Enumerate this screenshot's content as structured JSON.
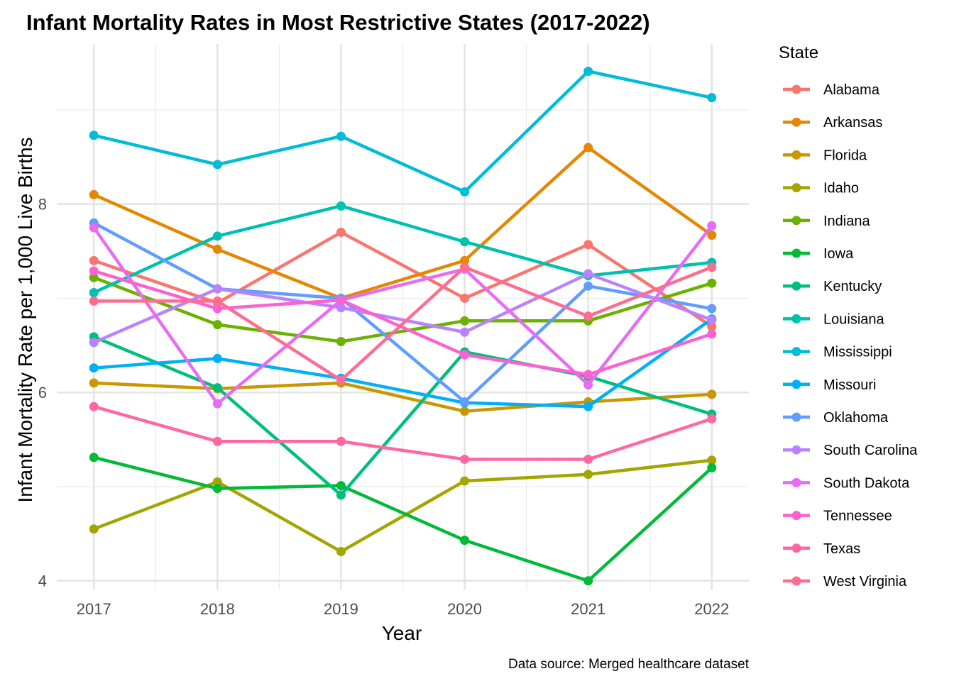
{
  "chart_data": {
    "type": "line",
    "title": "Infant Mortality Rates in Most Restrictive States (2017-2022)",
    "xlabel": "Year",
    "ylabel": "Infant Mortality Rate per 1,000 Live Births",
    "caption": "Data source: Merged healthcare dataset",
    "legend_title": "State",
    "legend_position": "right",
    "grid": true,
    "x": [
      2017,
      2018,
      2019,
      2020,
      2021,
      2022
    ],
    "x_ticks": [
      "2017",
      "2018",
      "2019",
      "2020",
      "2021",
      "2022"
    ],
    "ylim": [
      3.9,
      9.7
    ],
    "y_ticks": [
      4,
      6,
      8
    ],
    "y_tick_labels": [
      "4",
      "6",
      "8"
    ],
    "series": [
      {
        "name": "Alabama",
        "color": "#F8766D",
        "values": [
          7.4,
          6.95,
          7.7,
          7.0,
          7.57,
          6.7
        ]
      },
      {
        "name": "Arkansas",
        "color": "#E58700",
        "values": [
          8.1,
          7.52,
          7.0,
          7.4,
          8.6,
          7.67
        ]
      },
      {
        "name": "Florida",
        "color": "#C99800",
        "values": [
          6.1,
          6.04,
          6.1,
          5.8,
          5.9,
          5.98
        ]
      },
      {
        "name": "Idaho",
        "color": "#A3A500",
        "values": [
          4.55,
          5.05,
          4.31,
          5.06,
          5.13,
          5.28
        ]
      },
      {
        "name": "Indiana",
        "color": "#6BB100",
        "values": [
          7.22,
          6.72,
          6.54,
          6.76,
          6.76,
          7.16
        ]
      },
      {
        "name": "Iowa",
        "color": "#00BA38",
        "values": [
          5.31,
          4.98,
          5.01,
          4.43,
          4.0,
          5.2
        ]
      },
      {
        "name": "Kentucky",
        "color": "#00BF7D",
        "values": [
          6.59,
          6.05,
          4.91,
          6.43,
          6.17,
          5.77
        ]
      },
      {
        "name": "Louisiana",
        "color": "#00C0AF",
        "values": [
          7.06,
          7.66,
          7.98,
          7.6,
          7.24,
          7.38
        ]
      },
      {
        "name": "Mississippi",
        "color": "#00BCD8",
        "values": [
          8.73,
          8.42,
          8.72,
          8.13,
          9.41,
          9.13
        ]
      },
      {
        "name": "Missouri",
        "color": "#00B0F6",
        "values": [
          6.26,
          6.36,
          6.15,
          5.89,
          5.85,
          6.78
        ]
      },
      {
        "name": "Oklahoma",
        "color": "#619CFF",
        "values": [
          7.8,
          7.1,
          7.0,
          5.9,
          7.13,
          6.89
        ]
      },
      {
        "name": "South Carolina",
        "color": "#B983FF",
        "values": [
          6.53,
          7.1,
          6.9,
          6.64,
          7.26,
          6.77
        ]
      },
      {
        "name": "South Dakota",
        "color": "#E76BF3",
        "values": [
          7.75,
          5.88,
          6.98,
          7.31,
          6.08,
          7.77
        ]
      },
      {
        "name": "Tennessee",
        "color": "#FD61D1",
        "values": [
          7.29,
          6.89,
          6.98,
          6.4,
          6.19,
          6.62
        ]
      },
      {
        "name": "Texas",
        "color": "#FF67A4",
        "values": [
          5.85,
          5.48,
          5.48,
          5.29,
          5.29,
          5.72
        ]
      },
      {
        "name": "West Virginia",
        "color": "#FF6C91",
        "values": [
          6.97,
          6.97,
          6.13,
          7.33,
          6.81,
          7.33
        ]
      }
    ]
  }
}
